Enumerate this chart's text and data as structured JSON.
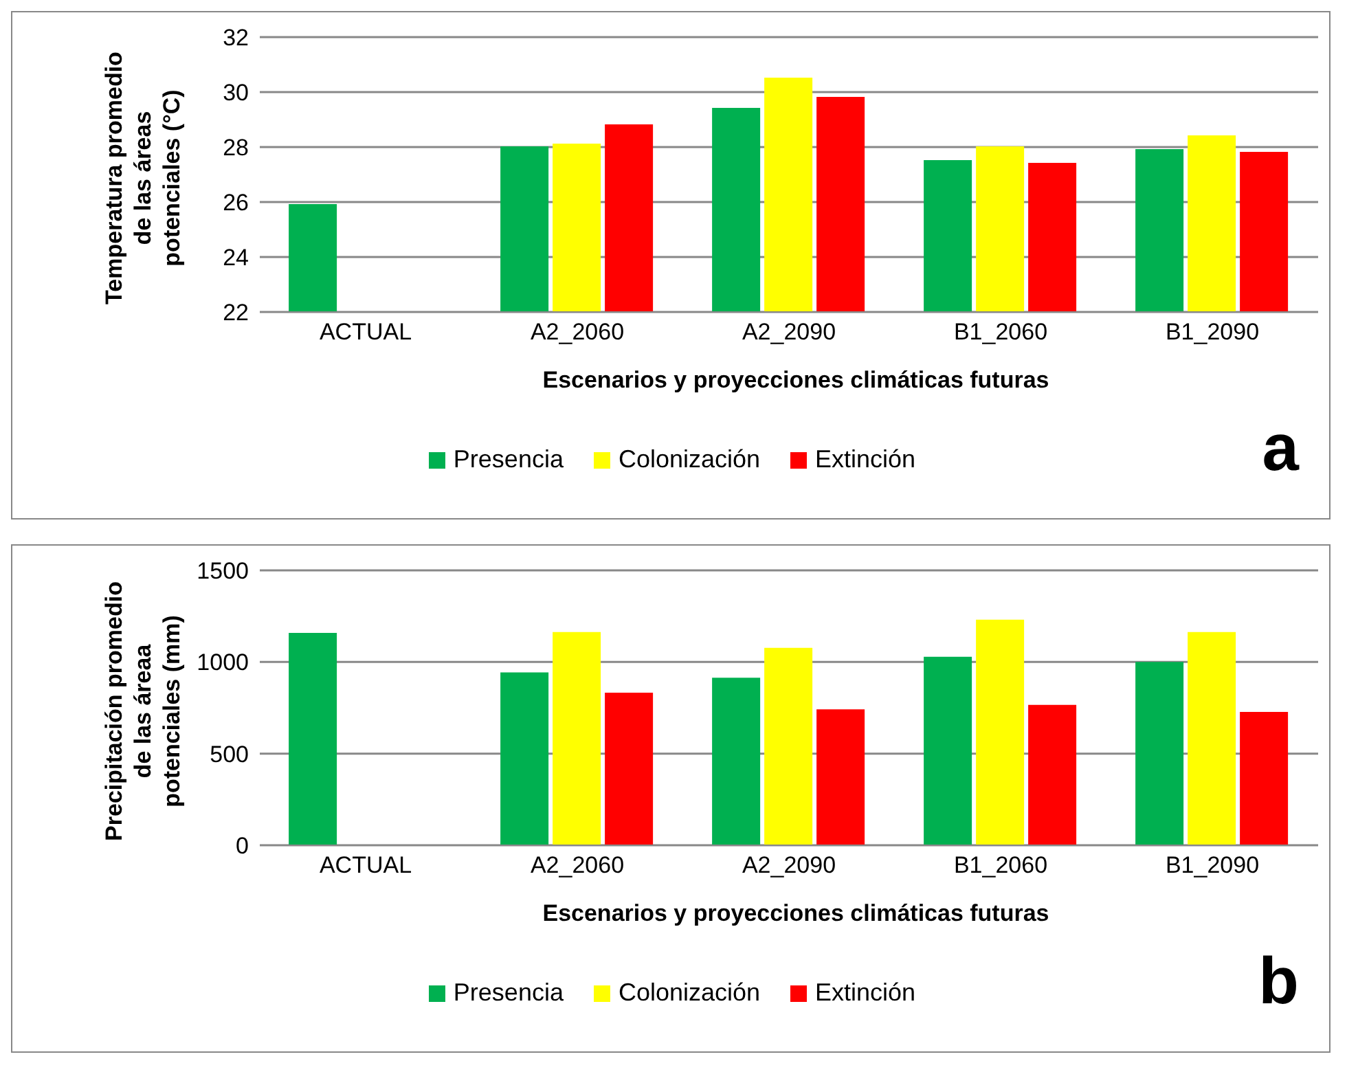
{
  "chart_data": [
    {
      "type": "bar",
      "ylabel": "Temperatura promedio de las áreas potenciales (°C)",
      "xlabel": "Escenarios y proyecciones climáticas futuras",
      "categories": [
        "ACTUAL",
        "A2_2060",
        "A2_2090",
        "B1_2060",
        "B1_2090"
      ],
      "series": [
        {
          "name": "Presencia",
          "color": "#00b050",
          "values": [
            25.9,
            28.0,
            29.4,
            27.5,
            27.9
          ]
        },
        {
          "name": "Colonización",
          "color": "#ffff00",
          "values": [
            null,
            28.1,
            30.5,
            28.0,
            28.4
          ]
        },
        {
          "name": "Extinción",
          "color": "#ff0000",
          "values": [
            null,
            28.8,
            29.8,
            27.4,
            27.8
          ]
        }
      ],
      "ylim": [
        22,
        32
      ],
      "yticks": [
        22,
        24,
        26,
        28,
        30,
        32
      ],
      "grid": "y",
      "legend": "bottom",
      "annotations": [
        "a"
      ]
    },
    {
      "type": "bar",
      "ylabel": "Precipitación promedio de las  áreaa potenciales (mm)",
      "xlabel": "Escenarios y proyecciones climáticas futuras",
      "categories": [
        "ACTUAL",
        "A2_2060",
        "A2_2090",
        "B1_2060",
        "B1_2090"
      ],
      "series": [
        {
          "name": "Presencia",
          "color": "#00b050",
          "values": [
            1155,
            939,
            910,
            1025,
            997
          ]
        },
        {
          "name": "Colonización",
          "color": "#ffff00",
          "values": [
            null,
            1160,
            1073,
            1227,
            1160
          ]
        },
        {
          "name": "Extinción",
          "color": "#ff0000",
          "values": [
            null,
            829,
            738,
            762,
            724
          ]
        }
      ],
      "ylim": [
        0,
        1500
      ],
      "yticks": [
        0,
        500,
        1000,
        1500
      ],
      "grid": "y",
      "legend": "bottom",
      "annotations": [
        "b"
      ]
    }
  ]
}
